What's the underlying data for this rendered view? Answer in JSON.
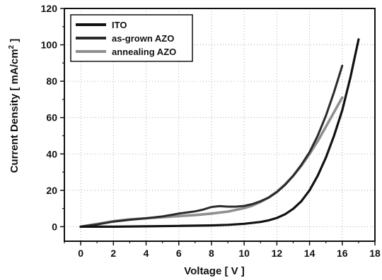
{
  "chart_data": {
    "type": "line",
    "title": "",
    "xlabel": "Voltage  [ V ]",
    "ylabel_main": "Current Density  [ mA/cm",
    "ylabel_sup": "2",
    "ylabel_end": " ]",
    "xlim": [
      -1,
      18
    ],
    "ylim": [
      -8,
      120
    ],
    "xticks": [
      0,
      2,
      4,
      6,
      8,
      10,
      12,
      14,
      16,
      18
    ],
    "yticks": [
      0,
      20,
      40,
      60,
      80,
      100,
      120
    ],
    "grid": "dotted",
    "legend_position": "top-left",
    "series": [
      {
        "name": "ITO",
        "color": "#111111",
        "x": [
          0,
          2,
          4,
          6,
          8,
          9,
          10,
          11,
          11.5,
          12,
          12.5,
          13,
          13.5,
          14,
          14.5,
          15,
          15.5,
          16,
          16.5,
          17
        ],
        "y": [
          0,
          0,
          0.2,
          0.4,
          0.7,
          1.0,
          1.6,
          2.6,
          3.5,
          4.8,
          6.8,
          9.8,
          14,
          20,
          28,
          38,
          50,
          64,
          82,
          103
        ]
      },
      {
        "name": "as-grown AZO",
        "color": "#2a2a2a",
        "x": [
          0,
          1,
          2,
          3,
          4,
          5,
          5.5,
          6,
          6.5,
          7,
          7.5,
          8,
          8.5,
          9,
          9.5,
          10,
          10.5,
          11,
          11.5,
          12,
          12.5,
          13,
          13.5,
          14,
          14.5,
          15,
          15.5,
          16
        ],
        "y": [
          0,
          1.2,
          2.8,
          3.8,
          4.6,
          5.6,
          6.4,
          7.2,
          7.8,
          8.4,
          9.4,
          10.8,
          11.3,
          11.0,
          11.0,
          11.4,
          12.4,
          14.0,
          16.0,
          19.0,
          23.0,
          28.0,
          34.0,
          41.0,
          50.0,
          61.0,
          74.0,
          88.5
        ]
      },
      {
        "name": "annealing AZO",
        "color": "#8f8f8f",
        "x": [
          0,
          1,
          2,
          3,
          4,
          5,
          6,
          7,
          8,
          9,
          10,
          10.5,
          11,
          11.5,
          12,
          12.5,
          13,
          13.5,
          14,
          14.5,
          15,
          15.5,
          16
        ],
        "y": [
          0,
          1.5,
          3.0,
          4.0,
          4.6,
          5.2,
          5.8,
          6.4,
          7.2,
          8.3,
          10.2,
          11.6,
          13.6,
          16.0,
          19.2,
          23.2,
          28.0,
          33.5,
          40.0,
          47.0,
          55.0,
          63.0,
          71.0
        ]
      }
    ]
  }
}
